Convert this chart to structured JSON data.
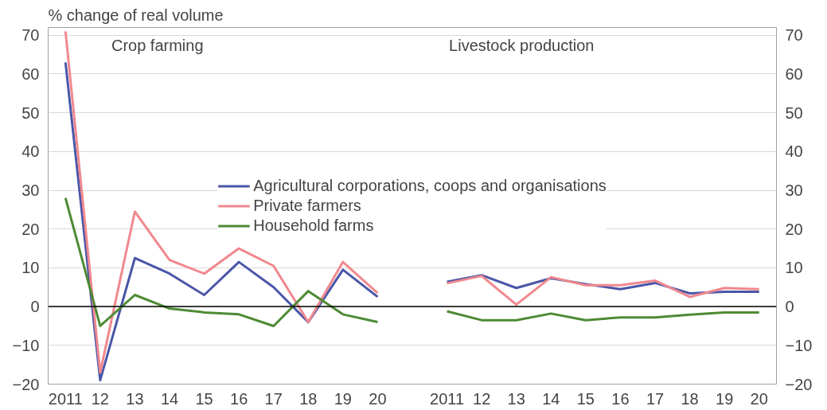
{
  "chart_data": {
    "type": "line",
    "ylabel": "% change of real volume",
    "categories": [
      "2011",
      "12",
      "13",
      "14",
      "15",
      "16",
      "17",
      "18",
      "19",
      "20",
      null,
      "2011",
      "12",
      "13",
      "14",
      "15",
      "16",
      "17",
      "18",
      "19",
      "20"
    ],
    "series": [
      {
        "name": "Agricultural corporations, coops and organisations",
        "color": "#4a56a8",
        "values": [
          63,
          -19,
          12.5,
          8.5,
          3,
          11.5,
          5,
          -4,
          9.5,
          2.5,
          null,
          6.4,
          8.1,
          4.8,
          7.3,
          5.8,
          4.5,
          6.1,
          3.4,
          3.8,
          3.8
        ]
      },
      {
        "name": "Private farmers",
        "color": "#f0888e",
        "values": [
          71,
          -17,
          24.5,
          12,
          8.5,
          15,
          10.5,
          -4,
          11.5,
          3.5,
          null,
          6,
          7.9,
          0.5,
          7.6,
          5.5,
          5.5,
          6.7,
          2.5,
          4.8,
          4.5
        ]
      },
      {
        "name": "Household farms",
        "color": "#4e8a34",
        "values": [
          28,
          -5,
          3,
          -0.5,
          -1.5,
          -2,
          -5,
          4,
          -2,
          -4,
          null,
          -1.2,
          -3.5,
          -3.5,
          -1.8,
          -3.5,
          -2.8,
          -2.8,
          -2.1,
          -1.5,
          -1.5
        ]
      }
    ],
    "annotations": [
      "Crop farming",
      "Livestock production"
    ],
    "ylim": [
      -20,
      72
    ],
    "yticks": [
      -20,
      -10,
      0,
      10,
      20,
      30,
      40,
      50,
      60,
      70
    ],
    "y2lim": [
      -20,
      72
    ],
    "y2ticks": [
      -20,
      -10,
      0,
      10,
      20,
      30,
      40,
      50,
      60,
      70
    ],
    "ref_lines": [
      {
        "axis": "y",
        "value": 0,
        "color": "#000000"
      }
    ],
    "grid": "y",
    "legend": "center",
    "line_style": "solid",
    "marker": "none"
  }
}
